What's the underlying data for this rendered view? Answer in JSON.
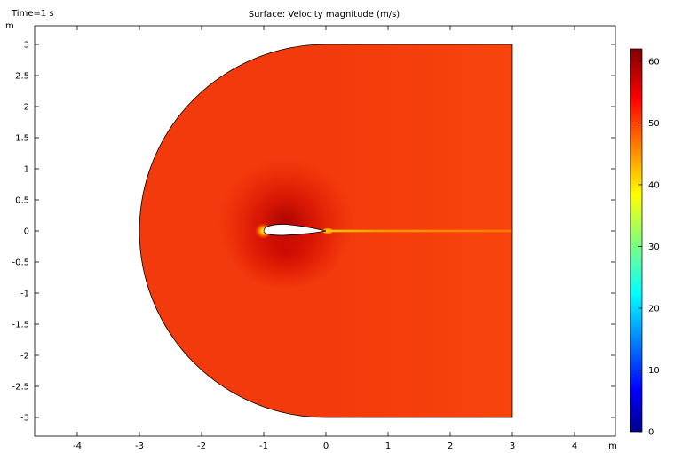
{
  "header": {
    "time_label": "Time=1 s",
    "title": "Surface: Velocity magnitude (m/s)"
  },
  "chart_data": {
    "type": "heatmap",
    "title": "Surface: Velocity magnitude (m/s)",
    "annotation": "Time=1 s",
    "xlabel": "m",
    "ylabel": "m",
    "xlim": [
      -4.7,
      4.7
    ],
    "ylim": [
      -3.3,
      3.3
    ],
    "xticks": [
      -4,
      -3,
      -2,
      -1,
      0,
      1,
      2,
      3,
      4
    ],
    "yticks": [
      3,
      2.5,
      2,
      1.5,
      1,
      0.5,
      0,
      -0.5,
      -1,
      -1.5,
      -2,
      -2.5,
      -3
    ],
    "colorbar": {
      "min": 0,
      "max": 62,
      "ticks": [
        0,
        10,
        20,
        30,
        40,
        50,
        60
      ],
      "colormap": [
        "#00008f",
        "#0000ff",
        "#00ffff",
        "#ffff00",
        "#ff0000",
        "#800000"
      ]
    },
    "domain": {
      "shape": "C-mesh",
      "semicircle_center": [
        0,
        0
      ],
      "radius": 3,
      "right_edge_x": 3
    },
    "airfoil": {
      "leading_edge_x": -1,
      "trailing_edge_x": 0
    },
    "field": {
      "freestream_value": 54,
      "stagnation_value": 42,
      "wake_value": 46
    }
  }
}
